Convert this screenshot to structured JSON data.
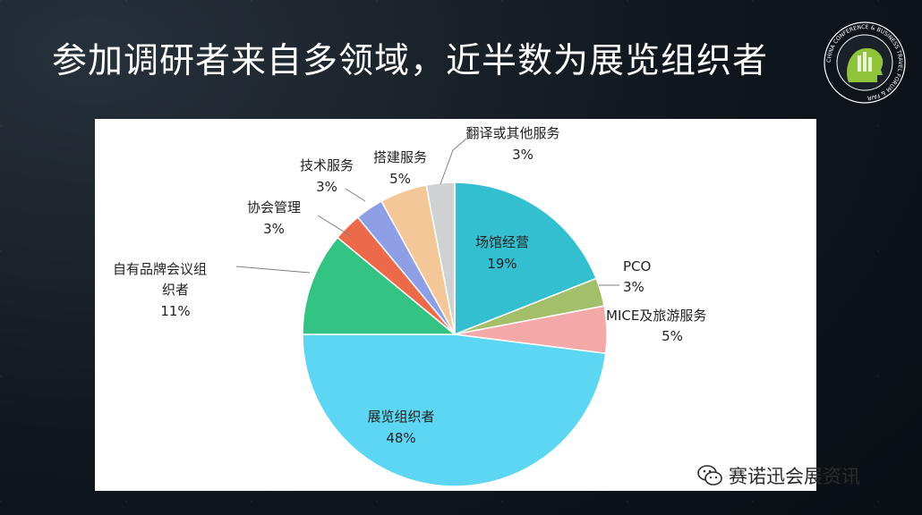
{
  "slide": {
    "title": "参加调研者来自多领域，近半数为展览组织者",
    "watermark": "赛诺迅会展资讯"
  },
  "logo": {
    "ring_text": "CHINA CONFERENCE & BUSINESS TRAVEL FORUM & FAIR",
    "ring_color": "#ffffff",
    "accent_color": "#8fc33a"
  },
  "colors": {
    "slide_bg": "#10161d",
    "panel_bg": "#ffffff",
    "title": "#ffffff"
  },
  "chart_data": {
    "type": "pie",
    "start_angle_deg": 0,
    "direction": "clockwise",
    "slices": [
      {
        "label": "场馆经营",
        "value": 19,
        "value_label": "19%",
        "color": "#33bfd0",
        "label_inside": true
      },
      {
        "label": "PCO",
        "value": 3,
        "value_label": "3%",
        "color": "#a3bf6a",
        "label_inside": false
      },
      {
        "label": "MICE及旅游服务",
        "value": 5,
        "value_label": "5%",
        "color": "#f4a9a8",
        "label_inside": false
      },
      {
        "label": "展览组织者",
        "value": 48,
        "value_label": "48%",
        "color": "#5cd6f2",
        "label_inside": true
      },
      {
        "label": "自有品牌会议组织者",
        "value": 11,
        "value_label": "11%",
        "color": "#33c383",
        "label_inside": false
      },
      {
        "label": "协会管理",
        "value": 3,
        "value_label": "3%",
        "color": "#ec6a4a",
        "label_inside": false
      },
      {
        "label": "技术服务",
        "value": 3,
        "value_label": "3%",
        "color": "#8f9fe6",
        "label_inside": false
      },
      {
        "label": "搭建服务",
        "value": 5,
        "value_label": "5%",
        "color": "#f3c798",
        "label_inside": false
      },
      {
        "label": "翻译或其他服务",
        "value": 3,
        "value_label": "3%",
        "color": "#cfd2d3",
        "label_inside": false
      }
    ]
  }
}
